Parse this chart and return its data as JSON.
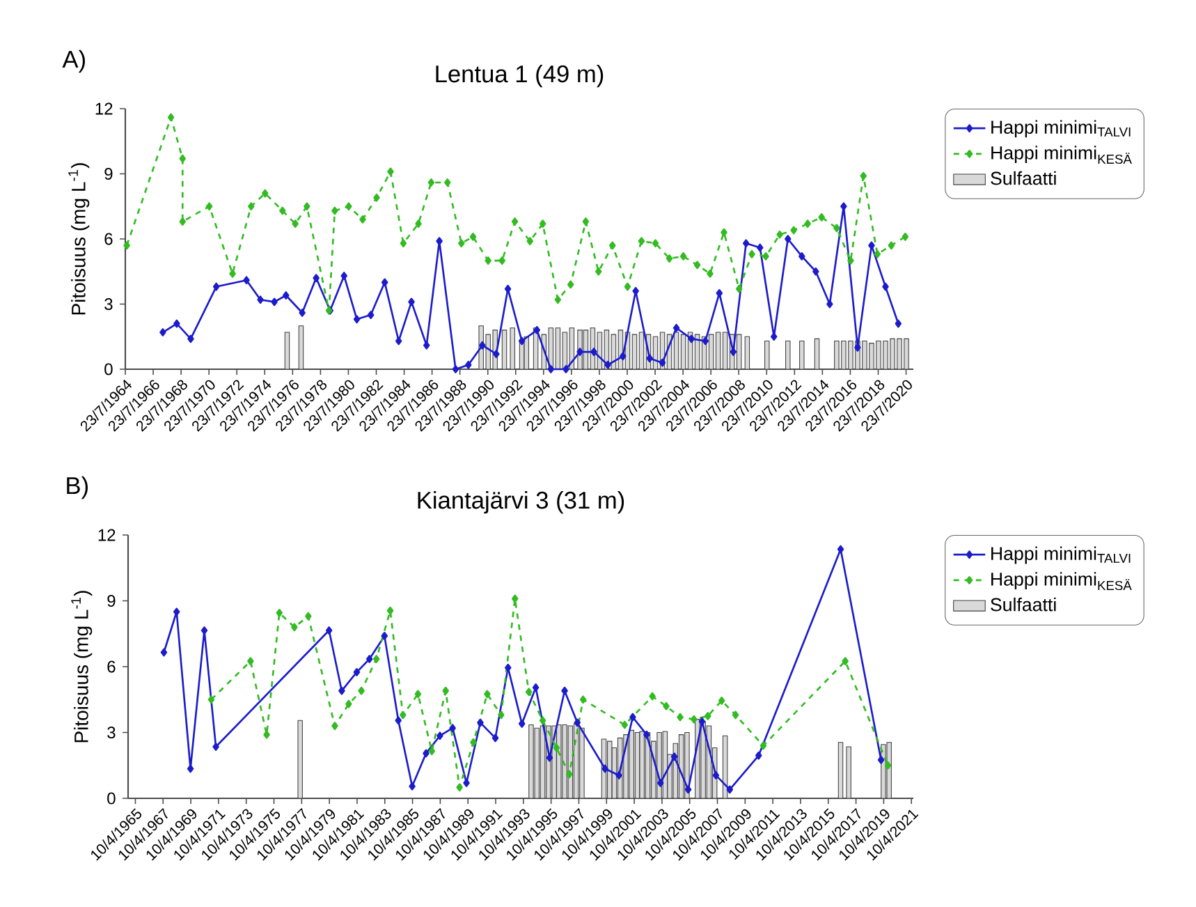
{
  "chart_data": [
    {
      "type": "line",
      "title": "Lentua 1 (49 m)",
      "ylabel": "Pitoisuus (mg L$^{-1}$)",
      "annotations": [
        "A)"
      ],
      "legend": "right",
      "marker": "diamond",
      "xlim": [
        "1964-07-23",
        "2021-02"
      ],
      "ylim": [
        0,
        12
      ],
      "yticks": [
        0,
        3,
        6,
        9,
        12
      ],
      "xticks": [
        {
          "value": "1964-07-23",
          "label": "23/7/1964"
        },
        {
          "value": "1966-07-23",
          "label": "23/7/1966"
        },
        {
          "value": "1968-07-23",
          "label": "23/7/1968"
        },
        {
          "value": "1970-07-23",
          "label": "23/7/1970"
        },
        {
          "value": "1972-07-23",
          "label": "23/7/1972"
        },
        {
          "value": "1974-07-23",
          "label": "23/7/1974"
        },
        {
          "value": "1976-07-23",
          "label": "23/7/1976"
        },
        {
          "value": "1978-07-23",
          "label": "23/7/1978"
        },
        {
          "value": "1980-07-23",
          "label": "23/7/1980"
        },
        {
          "value": "1982-07-23",
          "label": "23/7/1982"
        },
        {
          "value": "1984-07-23",
          "label": "23/7/1984"
        },
        {
          "value": "1986-07-23",
          "label": "23/7/1986"
        },
        {
          "value": "1988-07-23",
          "label": "23/7/1988"
        },
        {
          "value": "1990-07-23",
          "label": "23/7/1990"
        },
        {
          "value": "1992-07-23",
          "label": "23/7/1992"
        },
        {
          "value": "1994-07-23",
          "label": "23/7/1994"
        },
        {
          "value": "1996-07-23",
          "label": "23/7/1996"
        },
        {
          "value": "1998-07-23",
          "label": "23/7/1998"
        },
        {
          "value": "2000-07-23",
          "label": "23/7/2000"
        },
        {
          "value": "2002-07-23",
          "label": "23/7/2002"
        },
        {
          "value": "2004-07-23",
          "label": "23/7/2004"
        },
        {
          "value": "2006-07-23",
          "label": "23/7/2006"
        },
        {
          "value": "2008-07-23",
          "label": "23/7/2008"
        },
        {
          "value": "2010-07-23",
          "label": "23/7/2010"
        },
        {
          "value": "2012-07-23",
          "label": "23/7/2012"
        },
        {
          "value": "2014-07-23",
          "label": "23/7/2014"
        },
        {
          "value": "2016-07-23",
          "label": "23/7/2016"
        },
        {
          "value": "2018-07-23",
          "label": "23/7/2018"
        },
        {
          "value": "2020-07-23",
          "label": "23/7/2020"
        }
      ],
      "series": [
        {
          "name": "Happi minimi$_{TALVI}$",
          "color": "#1c1ccc",
          "line_style": "solid",
          "x": [
            "1967-04",
            "1968-04",
            "1969-04",
            "1971-02",
            "1973-04",
            "1974-04",
            "1975-04",
            "1976-02",
            "1977-04",
            "1978-04",
            "1979-04",
            "1980-04",
            "1981-03",
            "1982-03",
            "1983-03",
            "1984-03",
            "1985-02",
            "1986-03",
            "1987-02",
            "1988-04",
            "1989-03",
            "1990-03",
            "1991-03",
            "1992-01",
            "1993-01",
            "1994-02",
            "1995-02",
            "1996-03",
            "1997-03",
            "1998-03",
            "1999-03",
            "2000-04",
            "2001-03",
            "2002-03",
            "2003-02",
            "2004-02",
            "2005-03",
            "2006-03",
            "2007-03",
            "2008-03",
            "2009-02",
            "2010-02",
            "2011-02",
            "2012-02",
            "2013-02",
            "2014-02",
            "2015-02",
            "2016-02",
            "2017-02",
            "2018-02",
            "2019-02",
            "2020-01"
          ],
          "values": [
            1.7,
            2.1,
            1.4,
            3.8,
            4.1,
            3.2,
            3.1,
            3.4,
            2.6,
            4.2,
            2.7,
            4.3,
            2.3,
            2.5,
            4.0,
            1.3,
            3.1,
            1.1,
            5.9,
            0,
            0.2,
            1.1,
            0.7,
            3.7,
            1.3,
            1.8,
            0,
            0,
            0.8,
            0.8,
            0.2,
            0.6,
            3.6,
            0.5,
            0.3,
            1.9,
            1.4,
            1.3,
            3.5,
            0.8,
            5.8,
            5.6,
            1.5,
            6.0,
            5.2,
            4.5,
            3.0,
            7.5,
            1.0,
            5.7,
            3.8,
            2.1
          ]
        },
        {
          "name": "Happi minimi$_{KESÄ}$",
          "color": "#33bb22",
          "line_style": "dashed",
          "x": [
            "1964-09",
            "1967-11",
            "1968-09",
            "1968-09",
            "1970-08",
            "1972-04",
            "1973-08",
            "1974-08",
            "1975-11",
            "1976-10",
            "1977-08",
            "1979-03",
            "1979-08",
            "1980-08",
            "1981-08",
            "1982-08",
            "1983-08",
            "1984-07",
            "1985-08",
            "1986-07",
            "1987-09",
            "1988-09",
            "1989-07",
            "1990-08",
            "1991-08",
            "1992-07",
            "1993-08",
            "1994-07",
            "1995-08",
            "1996-07",
            "1997-08",
            "1998-07",
            "1999-07",
            "2000-08",
            "2001-08",
            "2002-08",
            "2003-08",
            "2004-08",
            "2005-08",
            "2006-07",
            "2007-07",
            "2008-08",
            "2009-07",
            "2010-07",
            "2011-07",
            "2012-07",
            "2013-07",
            "2014-07",
            "2015-08",
            "2016-08",
            "2017-07",
            "2018-07",
            "2019-07",
            "2020-07"
          ],
          "values": [
            5.7,
            11.6,
            9.7,
            6.8,
            7.5,
            4.4,
            7.5,
            8.1,
            7.3,
            6.7,
            7.5,
            2.7,
            7.3,
            7.5,
            6.9,
            7.9,
            9.1,
            5.8,
            6.7,
            8.6,
            8.6,
            5.8,
            6.1,
            5.0,
            5.0,
            6.8,
            5.9,
            6.7,
            3.2,
            3.9,
            6.8,
            4.5,
            5.7,
            3.8,
            5.9,
            5.8,
            5.1,
            5.2,
            4.8,
            4.4,
            6.3,
            3.7,
            5.3,
            5.2,
            6.2,
            6.4,
            6.7,
            7.0,
            6.5,
            5.0,
            8.9,
            5.3,
            5.7,
            6.1
          ]
        },
        {
          "name": "Sulfaatti",
          "type": "bar",
          "color": "#d9d9d9",
          "x": [
            "1976-03",
            "1977-03",
            "1990-02",
            "1990-08",
            "1991-02",
            "1991-10",
            "1992-05",
            "1993-01",
            "1993-05",
            "1994-01",
            "1994-08",
            "1995-02",
            "1995-08",
            "1996-02",
            "1996-08",
            "1997-03",
            "1997-08",
            "1998-02",
            "1998-08",
            "1999-02",
            "1999-08",
            "2000-02",
            "2000-08",
            "2001-02",
            "2001-08",
            "2002-02",
            "2002-08",
            "2003-02",
            "2003-08",
            "2004-02",
            "2004-08",
            "2005-02",
            "2005-08",
            "2006-02",
            "2006-08",
            "2007-02",
            "2007-08",
            "2008-02",
            "2008-08",
            "2009-03",
            "2010-08",
            "2012-02",
            "2013-02",
            "2014-03",
            "2015-08",
            "2016-02",
            "2016-08",
            "2017-02",
            "2017-08",
            "2018-02",
            "2018-08",
            "2019-02",
            "2019-08",
            "2020-02",
            "2020-08"
          ],
          "values": [
            1.7,
            2.0,
            2.0,
            1.6,
            1.8,
            1.8,
            1.9,
            1.3,
            1.5,
            1.9,
            1.6,
            1.9,
            1.9,
            1.7,
            1.9,
            1.8,
            1.8,
            1.9,
            1.7,
            1.8,
            1.6,
            1.8,
            1.7,
            1.6,
            1.7,
            1.6,
            1.5,
            1.7,
            1.6,
            1.7,
            1.6,
            1.7,
            1.6,
            1.5,
            1.6,
            1.7,
            1.7,
            1.6,
            1.6,
            1.5,
            1.3,
            1.3,
            1.3,
            1.4,
            1.3,
            1.3,
            1.3,
            1.3,
            1.3,
            1.2,
            1.3,
            1.3,
            1.4,
            1.4,
            1.4
          ]
        }
      ]
    },
    {
      "type": "line",
      "title": "Kiantajärvi 3 (31 m)",
      "ylabel": "Pitoisuus (mg L$^{-1}$)",
      "annotations": [
        "B)"
      ],
      "legend": "right",
      "marker": "diamond",
      "xlim": [
        "1964-10",
        "2021-06"
      ],
      "ylim": [
        0,
        12
      ],
      "yticks": [
        0,
        3,
        6,
        9,
        12
      ],
      "xticks": [
        {
          "value": "1965-04-10",
          "label": "10/4/1965"
        },
        {
          "value": "1967-04-10",
          "label": "10/4/1967"
        },
        {
          "value": "1969-04-10",
          "label": "10/4/1969"
        },
        {
          "value": "1971-04-10",
          "label": "10/4/1971"
        },
        {
          "value": "1973-04-10",
          "label": "10/4/1973"
        },
        {
          "value": "1975-04-10",
          "label": "10/4/1975"
        },
        {
          "value": "1977-04-10",
          "label": "10/4/1977"
        },
        {
          "value": "1979-04-10",
          "label": "10/4/1979"
        },
        {
          "value": "1981-04-10",
          "label": "10/4/1981"
        },
        {
          "value": "1983-04-10",
          "label": "10/4/1983"
        },
        {
          "value": "1985-04-10",
          "label": "10/4/1985"
        },
        {
          "value": "1987-04-10",
          "label": "10/4/1987"
        },
        {
          "value": "1989-04-10",
          "label": "10/4/1989"
        },
        {
          "value": "1991-04-10",
          "label": "10/4/1991"
        },
        {
          "value": "1993-04-10",
          "label": "10/4/1993"
        },
        {
          "value": "1995-04-10",
          "label": "10/4/1995"
        },
        {
          "value": "1997-04-10",
          "label": "10/4/1997"
        },
        {
          "value": "1999-04-10",
          "label": "10/4/1999"
        },
        {
          "value": "2001-04-10",
          "label": "10/4/2001"
        },
        {
          "value": "2003-04-10",
          "label": "10/4/2003"
        },
        {
          "value": "2005-04-10",
          "label": "10/4/2005"
        },
        {
          "value": "2007-04-10",
          "label": "10/4/2007"
        },
        {
          "value": "2009-04-10",
          "label": "10/4/2009"
        },
        {
          "value": "2011-04-10",
          "label": "10/4/2011"
        },
        {
          "value": "2013-04-10",
          "label": "10/4/2013"
        },
        {
          "value": "2015-04-10",
          "label": "10/4/2015"
        },
        {
          "value": "2017-04-10",
          "label": "10/4/2017"
        },
        {
          "value": "2019-04-10",
          "label": "10/4/2019"
        },
        {
          "value": "2021-04-10",
          "label": "10/4/2021"
        }
      ],
      "series": [
        {
          "name": "Happi minimi$_{TALVI}$",
          "color": "#1c1ccc",
          "line_style": "solid",
          "x": [
            "1967-05",
            "1968-04",
            "1969-04",
            "1970-04",
            "1971-02",
            "1979-04",
            "1980-03",
            "1981-04",
            "1982-03",
            "1983-04",
            "1984-04",
            "1985-04",
            "1986-04",
            "1987-04",
            "1988-03",
            "1989-03",
            "1990-03",
            "1991-04",
            "1992-03",
            "1993-03",
            "1994-03",
            "1995-03",
            "1996-04",
            "1997-03",
            "1999-03",
            "2000-03",
            "2001-03",
            "2002-03",
            "2003-03",
            "2004-03",
            "2005-03",
            "2006-03",
            "2007-03",
            "2008-03",
            "2010-04",
            "2016-03",
            "2019-02"
          ],
          "values": [
            6.65,
            8.5,
            1.35,
            7.65,
            2.35,
            7.65,
            4.9,
            5.75,
            6.35,
            7.4,
            3.55,
            0.55,
            2.05,
            2.85,
            3.2,
            0.7,
            3.45,
            2.75,
            5.95,
            3.4,
            5.05,
            1.85,
            4.9,
            3.45,
            1.35,
            1.05,
            3.7,
            2.9,
            0.7,
            1.9,
            0.4,
            3.5,
            1.05,
            0.4,
            1.95,
            11.35,
            1.75
          ]
        },
        {
          "name": "Happi minimi$_{KESÄ}$",
          "color": "#33bb22",
          "line_style": "dashed",
          "x": [
            "1970-10",
            "1973-08",
            "1974-10",
            "1975-09",
            "1976-10",
            "1977-10",
            "1979-09",
            "1980-09",
            "1981-08",
            "1982-09",
            "1983-09",
            "1984-08",
            "1985-09",
            "1986-09",
            "1987-09",
            "1988-09",
            "1989-09",
            "1990-09",
            "1991-09",
            "1992-09",
            "1993-09",
            "1994-09",
            "1995-09",
            "1996-08",
            "1997-08",
            "2000-08",
            "2002-08",
            "2003-08",
            "2004-08",
            "2005-08",
            "2006-08",
            "2007-08",
            "2008-08",
            "2010-08",
            "2016-07",
            "2019-08"
          ],
          "values": [
            4.5,
            6.25,
            2.9,
            8.45,
            7.8,
            8.3,
            3.3,
            4.3,
            4.9,
            6.35,
            8.55,
            3.8,
            4.75,
            2.15,
            4.9,
            0.5,
            2.55,
            4.75,
            3.8,
            9.1,
            4.85,
            3.55,
            2.3,
            1.1,
            4.5,
            3.35,
            4.65,
            4.2,
            3.7,
            3.6,
            3.75,
            4.45,
            3.8,
            2.4,
            6.25,
            1.5
          ]
        },
        {
          "name": "Sulfaatti",
          "type": "bar",
          "color": "#d9d9d9",
          "x": [
            "1977-03",
            "1993-11",
            "1994-04",
            "1994-09",
            "1995-02",
            "1995-07",
            "1995-11",
            "1996-04",
            "1996-09",
            "1997-02",
            "1997-07",
            "1999-02",
            "1999-07",
            "1999-11",
            "2000-04",
            "2000-09",
            "2001-02",
            "2001-07",
            "2001-11",
            "2002-04",
            "2002-09",
            "2003-02",
            "2003-07",
            "2003-11",
            "2004-04",
            "2004-09",
            "2005-02",
            "2005-11",
            "2006-04",
            "2006-09",
            "2007-02",
            "2007-11",
            "2016-03",
            "2016-10",
            "2019-04",
            "2019-09"
          ],
          "values": [
            3.55,
            3.35,
            3.2,
            3.3,
            3.3,
            3.3,
            3.35,
            3.35,
            3.3,
            3.4,
            3.2,
            2.7,
            2.6,
            2.3,
            2.75,
            2.9,
            3.1,
            3.0,
            3.05,
            3.0,
            2.6,
            3.0,
            3.05,
            2.0,
            2.5,
            2.9,
            3.0,
            3.6,
            3.5,
            3.3,
            2.3,
            2.85,
            2.55,
            2.35,
            2.45,
            2.55
          ]
        }
      ]
    }
  ]
}
